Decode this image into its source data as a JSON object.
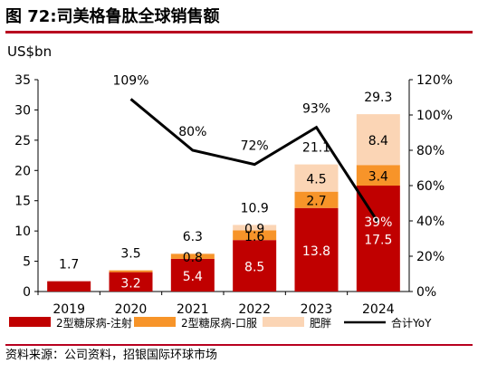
{
  "figure": {
    "title": "图 72:司美格鲁肽全球销售额",
    "source": "资料来源：公司资料，招银国际环球市场"
  },
  "chart_data": {
    "type": "bar",
    "stacked": true,
    "categories": [
      "2019",
      "2020",
      "2021",
      "2022",
      "2023",
      "2024"
    ],
    "series": [
      {
        "name": "2型糖尿病-注射",
        "color": "#c00000",
        "values": [
          1.7,
          3.2,
          5.4,
          8.5,
          13.8,
          17.5
        ]
      },
      {
        "name": "2型糖尿病-口服",
        "color": "#f79429",
        "values": [
          0,
          0.3,
          0.8,
          1.6,
          2.7,
          3.4
        ]
      },
      {
        "name": "肥胖",
        "color": "#fbd5b5",
        "values": [
          0,
          0,
          0.1,
          0.9,
          4.5,
          8.4
        ]
      }
    ],
    "segment_labels": [
      [
        "",
        "",
        "",
        ""
      ],
      [
        "3.2",
        "",
        "",
        ""
      ],
      [
        "5.4",
        "0.8",
        "",
        ""
      ],
      [
        "8.5",
        "1.6",
        "0.9",
        ""
      ],
      [
        "13.8",
        "2.7",
        "4.5",
        ""
      ],
      [
        "17.5",
        "3.4",
        "8.4",
        ""
      ]
    ],
    "totals": [
      "1.7",
      "3.5",
      "6.3",
      "10.9",
      "21.1",
      "29.3"
    ],
    "line": {
      "name": "合计YoY",
      "color": "#000000",
      "values": [
        null,
        109,
        80,
        72,
        93,
        39
      ],
      "labels": [
        "",
        "109%",
        "80%",
        "72%",
        "93%",
        "39%"
      ]
    },
    "y_left": {
      "label": "US$bn",
      "min": 0,
      "max": 35,
      "ticks": [
        "0",
        "5",
        "10",
        "15",
        "20",
        "25",
        "30",
        "35"
      ]
    },
    "y_right": {
      "min": 0,
      "max": 120,
      "ticks": [
        "0%",
        "20%",
        "40%",
        "60%",
        "80%",
        "100%",
        "120%"
      ]
    },
    "legend_position": "bottom"
  }
}
